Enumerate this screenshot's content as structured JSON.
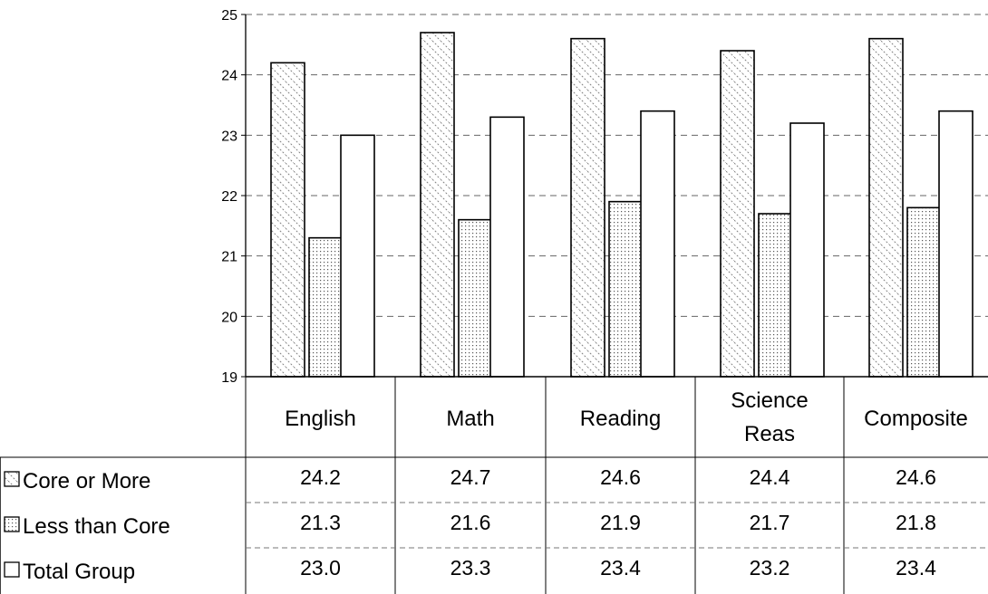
{
  "chart_data": {
    "type": "bar",
    "ylim": [
      19,
      25
    ],
    "yticks": [
      "19",
      "20",
      "21",
      "22",
      "23",
      "24",
      "25"
    ],
    "grid": true,
    "categories": [
      [
        "English"
      ],
      [
        "Math"
      ],
      [
        "Reading"
      ],
      [
        "Science",
        "Reas"
      ],
      [
        "Composite"
      ]
    ],
    "series": [
      {
        "name": "Core or More",
        "pattern": "diagonal-hatch",
        "values": [
          24.2,
          24.7,
          24.6,
          24.4,
          24.6
        ],
        "labels": [
          "24.2",
          "24.7",
          "24.6",
          "24.4",
          "24.6"
        ]
      },
      {
        "name": "Less than Core",
        "pattern": "dotted",
        "values": [
          21.3,
          21.6,
          21.9,
          21.7,
          21.8
        ],
        "labels": [
          "21.3",
          "21.6",
          "21.9",
          "21.7",
          "21.8"
        ]
      },
      {
        "name": "Total Group",
        "pattern": "solid-white",
        "values": [
          23.0,
          23.3,
          23.4,
          23.2,
          23.4
        ],
        "labels": [
          "23.0",
          "23.3",
          "23.4",
          "23.2",
          "23.4"
        ]
      }
    ],
    "legend": "data-table-left",
    "colors": {
      "stroke": "#000000",
      "background": "#ffffff",
      "grid": "#666666",
      "fill_total": "#ffffff"
    }
  }
}
